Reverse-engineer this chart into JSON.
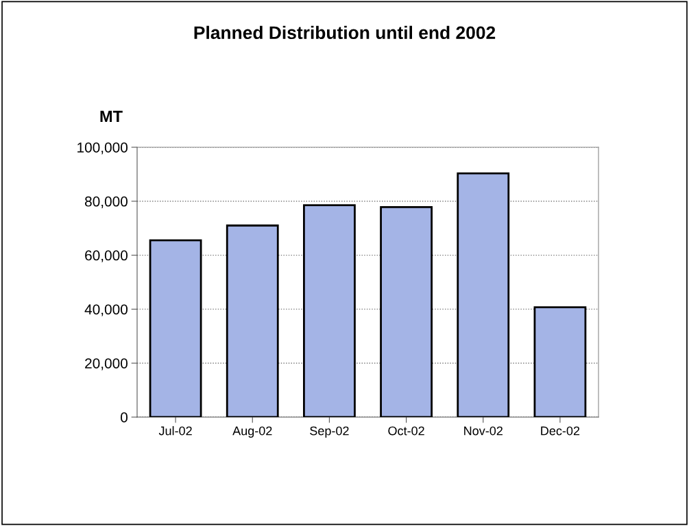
{
  "chart_data": {
    "type": "bar",
    "title": "Planned Distribution until end 2002",
    "ylabel": "MT",
    "categories": [
      "Jul-02",
      "Aug-02",
      "Sep-02",
      "Oct-02",
      "Nov-02",
      "Dec-02"
    ],
    "values": [
      65500,
      71000,
      78500,
      77800,
      90300,
      40700
    ],
    "color": "#a4b4e6",
    "ylim": [
      0,
      100000
    ],
    "yticks": [
      {
        "value": 0,
        "label": "0"
      },
      {
        "value": 20000,
        "label": "20,000"
      },
      {
        "value": 40000,
        "label": "40,000"
      },
      {
        "value": 60000,
        "label": "60,000"
      },
      {
        "value": 80000,
        "label": "80,000"
      },
      {
        "value": 100000,
        "label": "100,000"
      }
    ],
    "grid": "y",
    "legend": false
  }
}
